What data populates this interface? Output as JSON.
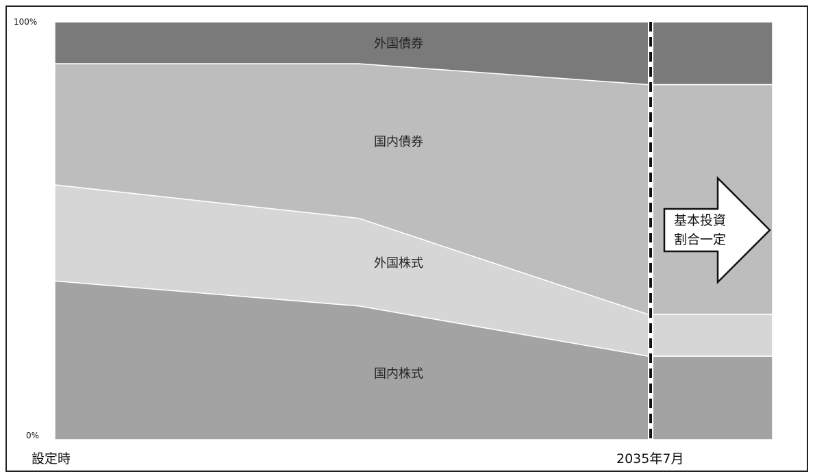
{
  "chart_data": {
    "type": "area",
    "stacked": true,
    "percent": true,
    "x": [
      "設定時",
      "",
      "2035年7月",
      ""
    ],
    "x_tick_labels": [
      "設定時",
      "2035年7月"
    ],
    "ylim": [
      0,
      100
    ],
    "y_tick_labels": [
      "0%",
      "100%"
    ],
    "grid": false,
    "legend": "none",
    "series": [
      {
        "name": "国内株式",
        "values": [
          38,
          32,
          20,
          20
        ],
        "color": "#a3a3a3"
      },
      {
        "name": "外国株式",
        "values": [
          23,
          21,
          10,
          10
        ],
        "color": "#d6d6d6"
      },
      {
        "name": "国内債券",
        "values": [
          29,
          37,
          55,
          55
        ],
        "color": "#bdbdbd"
      },
      {
        "name": "外国債券",
        "values": [
          10,
          10,
          15,
          15
        ],
        "color": "#7a7a7a"
      }
    ],
    "annotations": {
      "divider_label": "2035年7月",
      "arrow_text_line1": "基本投資",
      "arrow_text_line2": "割合一定"
    }
  }
}
